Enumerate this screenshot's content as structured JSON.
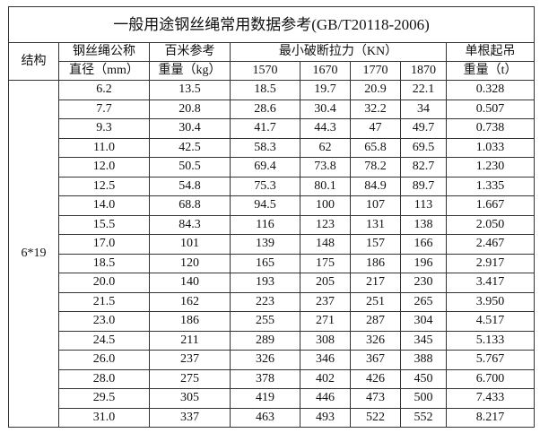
{
  "title": "一般用途钢丝绳常用数据参考(GB/T20118-2006)",
  "headers": {
    "structure": "结构",
    "diameter_line1": "钢丝绳公称",
    "diameter_line2": "直径（mm）",
    "weight_line1": "百米参考",
    "weight_line2": "重量（kg）",
    "breaking_force": "最小破断拉力（KN）",
    "grades": [
      "1570",
      "1670",
      "1770",
      "1870"
    ],
    "lift_line1": "单根起吊",
    "lift_line2": "重量（t）"
  },
  "structure": "6*19",
  "rows": [
    [
      "6.2",
      "13.5",
      "18.5",
      "19.7",
      "20.9",
      "22.1",
      "0.328"
    ],
    [
      "7.7",
      "20.8",
      "28.6",
      "30.4",
      "32.2",
      "34",
      "0.507"
    ],
    [
      "9.3",
      "30.4",
      "41.7",
      "44.3",
      "47",
      "49.7",
      "0.738"
    ],
    [
      "11.0",
      "42.5",
      "58.3",
      "62",
      "65.8",
      "69.5",
      "1.033"
    ],
    [
      "12.0",
      "50.5",
      "69.4",
      "73.8",
      "78.2",
      "82.7",
      "1.230"
    ],
    [
      "12.5",
      "54.8",
      "75.3",
      "80.1",
      "84.9",
      "89.7",
      "1.335"
    ],
    [
      "14.0",
      "68.8",
      "94.5",
      "100",
      "107",
      "113",
      "1.667"
    ],
    [
      "15.5",
      "84.3",
      "116",
      "123",
      "131",
      "138",
      "2.050"
    ],
    [
      "17.0",
      "101",
      "139",
      "148",
      "157",
      "166",
      "2.467"
    ],
    [
      "18.5",
      "120",
      "165",
      "175",
      "186",
      "196",
      "2.917"
    ],
    [
      "20.0",
      "140",
      "193",
      "205",
      "217",
      "230",
      "3.417"
    ],
    [
      "21.5",
      "162",
      "223",
      "237",
      "251",
      "265",
      "3.950"
    ],
    [
      "23.0",
      "186",
      "255",
      "271",
      "287",
      "304",
      "4.517"
    ],
    [
      "24.5",
      "211",
      "289",
      "308",
      "326",
      "345",
      "5.133"
    ],
    [
      "26.0",
      "237",
      "326",
      "346",
      "367",
      "388",
      "5.767"
    ],
    [
      "28.0",
      "275",
      "378",
      "402",
      "426",
      "450",
      "6.700"
    ],
    [
      "29.5",
      "305",
      "419",
      "446",
      "473",
      "500",
      "7.433"
    ],
    [
      "31.0",
      "337",
      "463",
      "493",
      "522",
      "552",
      "8.217"
    ]
  ]
}
